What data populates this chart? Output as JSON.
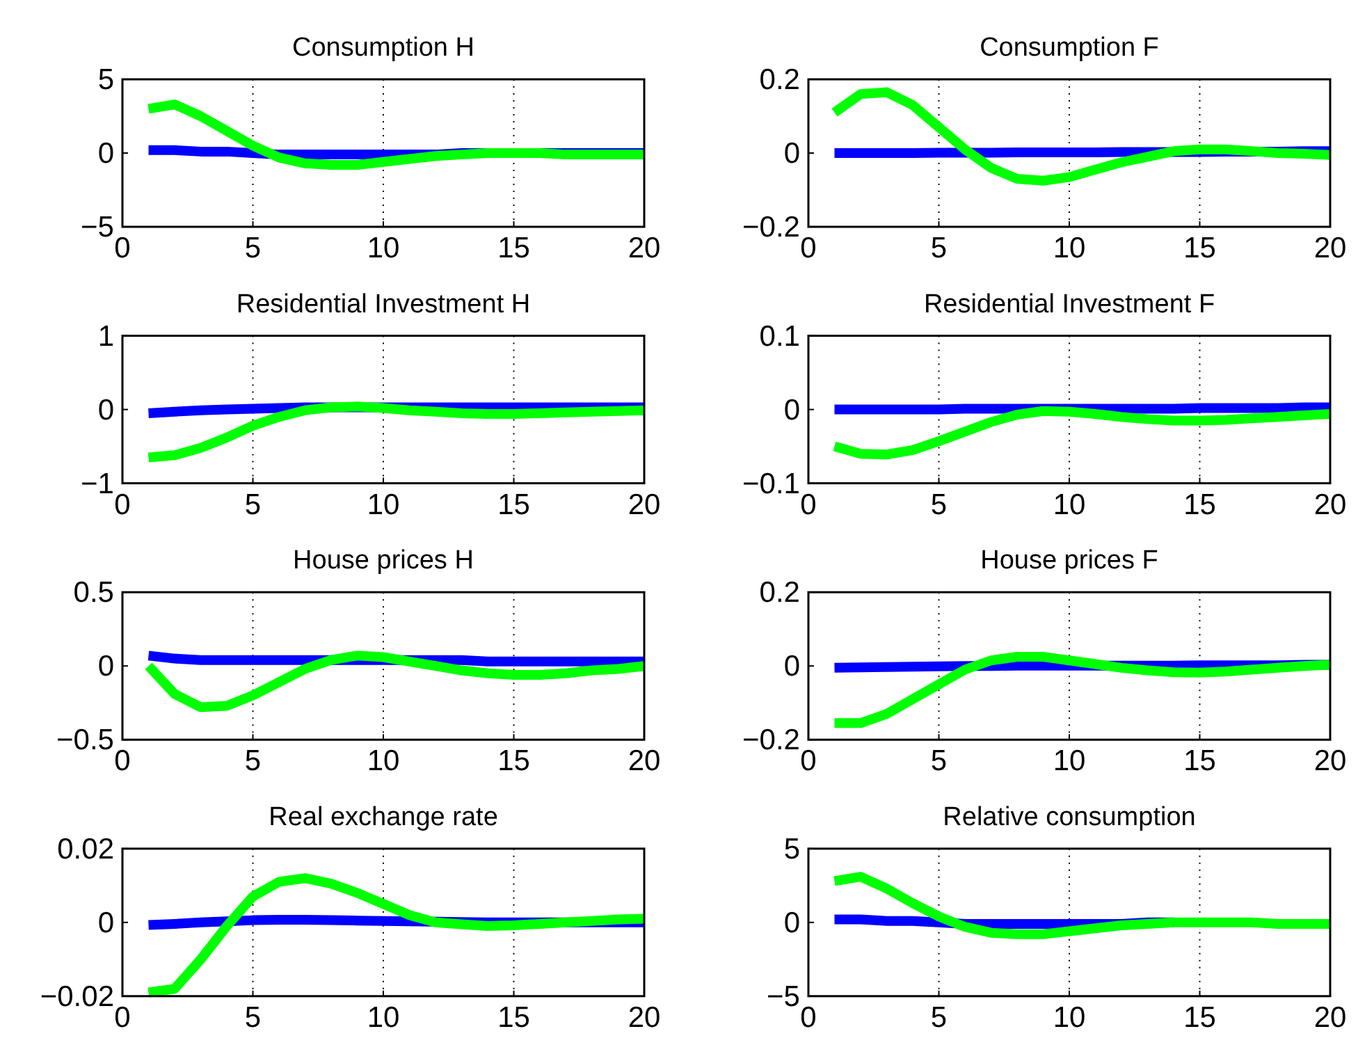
{
  "chart_data": [
    {
      "type": "line",
      "title": "Consumption H",
      "x": [
        1,
        2,
        3,
        4,
        5,
        6,
        7,
        8,
        9,
        10,
        11,
        12,
        13,
        14,
        15,
        16,
        17,
        18,
        19,
        20
      ],
      "xlim": [
        0,
        20
      ],
      "xticks": [
        0,
        5,
        10,
        15,
        20
      ],
      "ylim": [
        -5,
        5
      ],
      "yticks": [
        {
          "value": -5,
          "label": "−5"
        },
        0,
        5
      ],
      "grid": "x",
      "series": [
        {
          "color": "#0000ff",
          "values": [
            0.2,
            0.2,
            0.1,
            0.1,
            0,
            -0.1,
            -0.1,
            -0.1,
            -0.1,
            -0.1,
            -0.1,
            -0.1,
            0,
            0,
            0,
            0,
            0,
            0,
            0,
            0
          ]
        },
        {
          "color": "#00ff00",
          "values": [
            3.0,
            3.3,
            2.5,
            1.5,
            0.5,
            -0.3,
            -0.7,
            -0.8,
            -0.8,
            -0.6,
            -0.4,
            -0.2,
            -0.1,
            0,
            0,
            0,
            -0.1,
            -0.1,
            -0.1,
            -0.1
          ]
        }
      ]
    },
    {
      "type": "line",
      "title": "Consumption F",
      "x": [
        1,
        2,
        3,
        4,
        5,
        6,
        7,
        8,
        9,
        10,
        11,
        12,
        13,
        14,
        15,
        16,
        17,
        18,
        19,
        20
      ],
      "xlim": [
        0,
        20
      ],
      "xticks": [
        0,
        5,
        10,
        15,
        20
      ],
      "ylim": [
        -0.2,
        0.2
      ],
      "yticks": [
        {
          "value": -0.2,
          "label": "−0.2"
        },
        0,
        0.2
      ],
      "grid": "x",
      "series": [
        {
          "color": "#0000ff",
          "values": [
            0,
            0,
            0,
            0,
            0.001,
            0.001,
            0.001,
            0.002,
            0.002,
            0.002,
            0.002,
            0.003,
            0.003,
            0.003,
            0.003,
            0.004,
            0.004,
            0.004,
            0.005,
            0.005
          ]
        },
        {
          "color": "#00ff00",
          "values": [
            0.11,
            0.16,
            0.165,
            0.13,
            0.07,
            0.01,
            -0.04,
            -0.07,
            -0.075,
            -0.065,
            -0.045,
            -0.025,
            -0.01,
            0.005,
            0.01,
            0.01,
            0.005,
            0,
            -0.002,
            -0.005
          ]
        }
      ]
    },
    {
      "type": "line",
      "title": "Residential Investment H",
      "x": [
        1,
        2,
        3,
        4,
        5,
        6,
        7,
        8,
        9,
        10,
        11,
        12,
        13,
        14,
        15,
        16,
        17,
        18,
        19,
        20
      ],
      "xlim": [
        0,
        20
      ],
      "xticks": [
        0,
        5,
        10,
        15,
        20
      ],
      "ylim": [
        -1,
        1
      ],
      "yticks": [
        {
          "value": -1,
          "label": "−1"
        },
        0,
        1
      ],
      "grid": "x",
      "series": [
        {
          "color": "#0000ff",
          "values": [
            -0.05,
            -0.03,
            -0.01,
            0,
            0.01,
            0.02,
            0.03,
            0.03,
            0.03,
            0.03,
            0.03,
            0.03,
            0.03,
            0.03,
            0.03,
            0.03,
            0.03,
            0.03,
            0.03,
            0.03
          ]
        },
        {
          "color": "#00ff00",
          "values": [
            -0.65,
            -0.62,
            -0.52,
            -0.38,
            -0.22,
            -0.1,
            -0.01,
            0.03,
            0.04,
            0.02,
            -0.01,
            -0.03,
            -0.05,
            -0.06,
            -0.06,
            -0.05,
            -0.04,
            -0.03,
            -0.02,
            -0.01
          ]
        }
      ]
    },
    {
      "type": "line",
      "title": "Residential Investment F",
      "x": [
        1,
        2,
        3,
        4,
        5,
        6,
        7,
        8,
        9,
        10,
        11,
        12,
        13,
        14,
        15,
        16,
        17,
        18,
        19,
        20
      ],
      "xlim": [
        0,
        20
      ],
      "xticks": [
        0,
        5,
        10,
        15,
        20
      ],
      "ylim": [
        -0.1,
        0.1
      ],
      "yticks": [
        {
          "value": -0.1,
          "label": "−0.1"
        },
        0,
        0.1
      ],
      "grid": "x",
      "series": [
        {
          "color": "#0000ff",
          "values": [
            0,
            0,
            0,
            0,
            0,
            0.001,
            0.001,
            0.001,
            0.001,
            0.001,
            0.001,
            0.001,
            0.001,
            0.001,
            0.002,
            0.002,
            0.002,
            0.002,
            0.003,
            0.003
          ]
        },
        {
          "color": "#00ff00",
          "values": [
            -0.05,
            -0.06,
            -0.061,
            -0.055,
            -0.043,
            -0.03,
            -0.017,
            -0.007,
            -0.002,
            -0.003,
            -0.006,
            -0.01,
            -0.013,
            -0.015,
            -0.015,
            -0.014,
            -0.012,
            -0.01,
            -0.008,
            -0.006
          ]
        }
      ]
    },
    {
      "type": "line",
      "title": "House prices H",
      "x": [
        1,
        2,
        3,
        4,
        5,
        6,
        7,
        8,
        9,
        10,
        11,
        12,
        13,
        14,
        15,
        16,
        17,
        18,
        19,
        20
      ],
      "xlim": [
        0,
        20
      ],
      "xticks": [
        0,
        5,
        10,
        15,
        20
      ],
      "ylim": [
        -0.5,
        0.5
      ],
      "yticks": [
        {
          "value": -0.5,
          "label": "−0.5"
        },
        0,
        0.5
      ],
      "grid": "x",
      "series": [
        {
          "color": "#0000ff",
          "values": [
            0.07,
            0.05,
            0.04,
            0.04,
            0.04,
            0.04,
            0.04,
            0.04,
            0.04,
            0.04,
            0.04,
            0.04,
            0.04,
            0.03,
            0.03,
            0.03,
            0.03,
            0.03,
            0.03,
            0.03
          ]
        },
        {
          "color": "#00ff00",
          "values": [
            0,
            -0.19,
            -0.28,
            -0.27,
            -0.2,
            -0.11,
            -0.02,
            0.04,
            0.07,
            0.06,
            0.03,
            0,
            -0.03,
            -0.05,
            -0.06,
            -0.06,
            -0.05,
            -0.03,
            -0.02,
            0
          ]
        }
      ]
    },
    {
      "type": "line",
      "title": "House prices F",
      "x": [
        1,
        2,
        3,
        4,
        5,
        6,
        7,
        8,
        9,
        10,
        11,
        12,
        13,
        14,
        15,
        16,
        17,
        18,
        19,
        20
      ],
      "xlim": [
        0,
        20
      ],
      "xticks": [
        0,
        5,
        10,
        15,
        20
      ],
      "ylim": [
        -0.2,
        0.2
      ],
      "yticks": [
        {
          "value": -0.2,
          "label": "−0.2"
        },
        0,
        0.2
      ],
      "grid": "x",
      "series": [
        {
          "color": "#0000ff",
          "values": [
            -0.005,
            -0.004,
            -0.003,
            -0.002,
            -0.001,
            0,
            0,
            0.001,
            0.001,
            0.001,
            0.001,
            0.001,
            0.001,
            0.001,
            0.002,
            0.002,
            0.002,
            0.002,
            0.003,
            0.003
          ]
        },
        {
          "color": "#00ff00",
          "values": [
            -0.155,
            -0.155,
            -0.13,
            -0.09,
            -0.05,
            -0.01,
            0.015,
            0.025,
            0.025,
            0.015,
            0.005,
            -0.005,
            -0.012,
            -0.017,
            -0.018,
            -0.015,
            -0.01,
            -0.005,
            0,
            0.003
          ]
        }
      ]
    },
    {
      "type": "line",
      "title": "Real exchange rate",
      "x": [
        1,
        2,
        3,
        4,
        5,
        6,
        7,
        8,
        9,
        10,
        11,
        12,
        13,
        14,
        15,
        16,
        17,
        18,
        19,
        20
      ],
      "xlim": [
        0,
        20
      ],
      "xticks": [
        0,
        5,
        10,
        15,
        20
      ],
      "ylim": [
        -0.02,
        0.02
      ],
      "yticks": [
        {
          "value": -0.02,
          "label": "−0.02"
        },
        0,
        0.02
      ],
      "grid": "x",
      "series": [
        {
          "color": "#0000ff",
          "values": [
            -0.0007,
            -0.0004,
            0,
            0.0003,
            0.0006,
            0.0007,
            0.0007,
            0.0006,
            0.0005,
            0.0004,
            0.0003,
            0.0002,
            0.0001,
            0,
            0,
            0,
            0,
            0,
            0,
            0
          ]
        },
        {
          "color": "#00ff00",
          "values": [
            -0.019,
            -0.018,
            -0.01,
            -0.001,
            0.007,
            0.011,
            0.012,
            0.0105,
            0.008,
            0.005,
            0.002,
            0,
            -0.0005,
            -0.001,
            -0.0008,
            -0.0004,
            0,
            0.0004,
            0.0008,
            0.001
          ]
        }
      ]
    },
    {
      "type": "line",
      "title": "Relative consumption",
      "x": [
        1,
        2,
        3,
        4,
        5,
        6,
        7,
        8,
        9,
        10,
        11,
        12,
        13,
        14,
        15,
        16,
        17,
        18,
        19,
        20
      ],
      "xlim": [
        0,
        20
      ],
      "xticks": [
        0,
        5,
        10,
        15,
        20
      ],
      "ylim": [
        -5,
        5
      ],
      "yticks": [
        {
          "value": -5,
          "label": "−5"
        },
        0,
        5
      ],
      "grid": "x",
      "series": [
        {
          "color": "#0000ff",
          "values": [
            0.2,
            0.2,
            0.1,
            0.1,
            0,
            -0.1,
            -0.1,
            -0.1,
            -0.1,
            -0.1,
            -0.1,
            -0.1,
            0,
            0,
            null,
            null,
            null,
            null,
            null,
            null
          ]
        },
        {
          "color": "#00ff00",
          "values": [
            2.8,
            3.1,
            2.3,
            1.3,
            0.4,
            -0.3,
            -0.7,
            -0.8,
            -0.8,
            -0.6,
            -0.4,
            -0.2,
            -0.1,
            0,
            0,
            0,
            0,
            -0.1,
            -0.1,
            -0.1
          ]
        }
      ]
    }
  ]
}
